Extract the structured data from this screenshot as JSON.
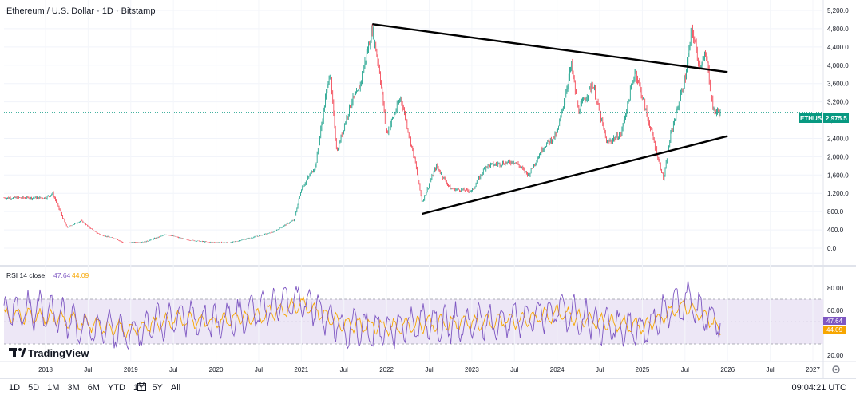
{
  "header": {
    "symbol_title": "Ethereum / U.S. Dollar · 1D · Bitstamp"
  },
  "price_scale": {
    "ticks": [
      "5,200.0",
      "4,800.0",
      "4,400.0",
      "4,000.0",
      "3,600.0",
      "3,200.0",
      "2,800.0",
      "2,400.0",
      "2,000.0",
      "1,600.0",
      "1,200.0",
      "800.0",
      "400.0",
      "0.0"
    ],
    "ticker_label": "ETHUSD",
    "last_price_label": "2,975.5",
    "ticker_color": "#089981"
  },
  "rsi": {
    "title": "RSI 14 close",
    "value_rsi": "47.64",
    "value_ma": "44.09",
    "rsi_color": "#7e57c2",
    "ma_color": "#f7a600",
    "band_upper": 70,
    "band_lower": 30,
    "ticks": [
      "80.00",
      "60.00",
      "20.00"
    ]
  },
  "time_axis": {
    "labels": [
      "2018",
      "Jul",
      "2019",
      "Jul",
      "2020",
      "Jul",
      "2021",
      "Jul",
      "2022",
      "Jul",
      "2023",
      "Jul",
      "2024",
      "Jul",
      "2025",
      "Jul",
      "2026",
      "Jul",
      "2027"
    ]
  },
  "watermark": {
    "text": "TradingView"
  },
  "toolbar": {
    "ranges": [
      "1D",
      "5D",
      "1M",
      "3M",
      "6M",
      "YTD",
      "1Y",
      "5Y",
      "All"
    ],
    "clock": "09:04:21 UTC",
    "calendar_icon": "calendar-icon",
    "settings_icon": "gear-icon"
  },
  "colors": {
    "up": "#089981",
    "down": "#f23645",
    "trendline": "#000000",
    "rsi_band_fill": "#ede7f6"
  },
  "chart_data": [
    {
      "type": "line",
      "title": "Ethereum / U.S. Dollar · 1D · Bitstamp",
      "xlabel": "",
      "ylabel": "",
      "ylim": [
        0,
        5200
      ],
      "x": [
        "2018-01",
        "2018-02",
        "2018-04",
        "2018-06",
        "2018-08",
        "2018-09",
        "2018-11",
        "2018-12",
        "2019-03",
        "2019-06",
        "2019-09",
        "2019-12",
        "2020-03",
        "2020-06",
        "2020-09",
        "2020-12",
        "2021-01",
        "2021-03",
        "2021-05",
        "2021-06",
        "2021-08",
        "2021-09",
        "2021-11",
        "2021-12",
        "2022-01",
        "2022-03",
        "2022-05",
        "2022-06",
        "2022-08",
        "2022-10",
        "2023-01",
        "2023-03",
        "2023-05",
        "2023-07",
        "2023-09",
        "2023-11",
        "2024-01",
        "2024-03",
        "2024-04",
        "2024-06",
        "2024-08",
        "2024-10",
        "2024-12",
        "2025-02",
        "2025-04",
        "2025-05",
        "2025-07",
        "2025-08",
        "2025-09",
        "2025-10",
        "2025-11",
        "2025-12"
      ],
      "series": [
        {
          "values": [
            1100,
            1200,
            450,
            600,
            350,
            280,
            200,
            110,
            140,
            300,
            180,
            130,
            120,
            230,
            350,
            620,
            1300,
            1800,
            3900,
            2100,
            3200,
            3400,
            4800,
            3900,
            2500,
            3300,
            1900,
            1000,
            1800,
            1300,
            1250,
            1800,
            1850,
            1900,
            1600,
            2200,
            2500,
            4000,
            3000,
            3600,
            2300,
            2500,
            3900,
            2700,
            1500,
            2500,
            3700,
            4800,
            4000,
            4200,
            3000,
            2975.5
          ]
        }
      ],
      "trendlines": [
        {
          "name": "",
          "points": [
            [
              "2021-11",
              4900
            ],
            [
              "2026-01",
              3850
            ]
          ]
        },
        {
          "name": "",
          "points": [
            [
              "2022-06",
              750
            ],
            [
              "2026-01",
              2450
            ]
          ]
        }
      ]
    },
    {
      "type": "line",
      "title": "RSI 14 close",
      "xlabel": "",
      "ylabel": "",
      "ylim": [
        15,
        95
      ],
      "x": [
        "2018-01",
        "2018-07",
        "2019-01",
        "2019-07",
        "2020-01",
        "2020-07",
        "2021-01",
        "2021-07",
        "2022-01",
        "2022-07",
        "2023-01",
        "2023-07",
        "2024-01",
        "2024-07",
        "2025-01",
        "2025-07",
        "2025-12"
      ],
      "series": [
        {
          "name": "",
          "values": [
            60,
            45,
            40,
            55,
            50,
            58,
            70,
            45,
            42,
            50,
            48,
            52,
            60,
            48,
            42,
            70,
            47.64
          ]
        },
        {
          "name": "",
          "values": [
            55,
            48,
            42,
            52,
            50,
            55,
            65,
            48,
            45,
            48,
            49,
            51,
            57,
            50,
            45,
            65,
            44.09
          ]
        }
      ]
    }
  ]
}
